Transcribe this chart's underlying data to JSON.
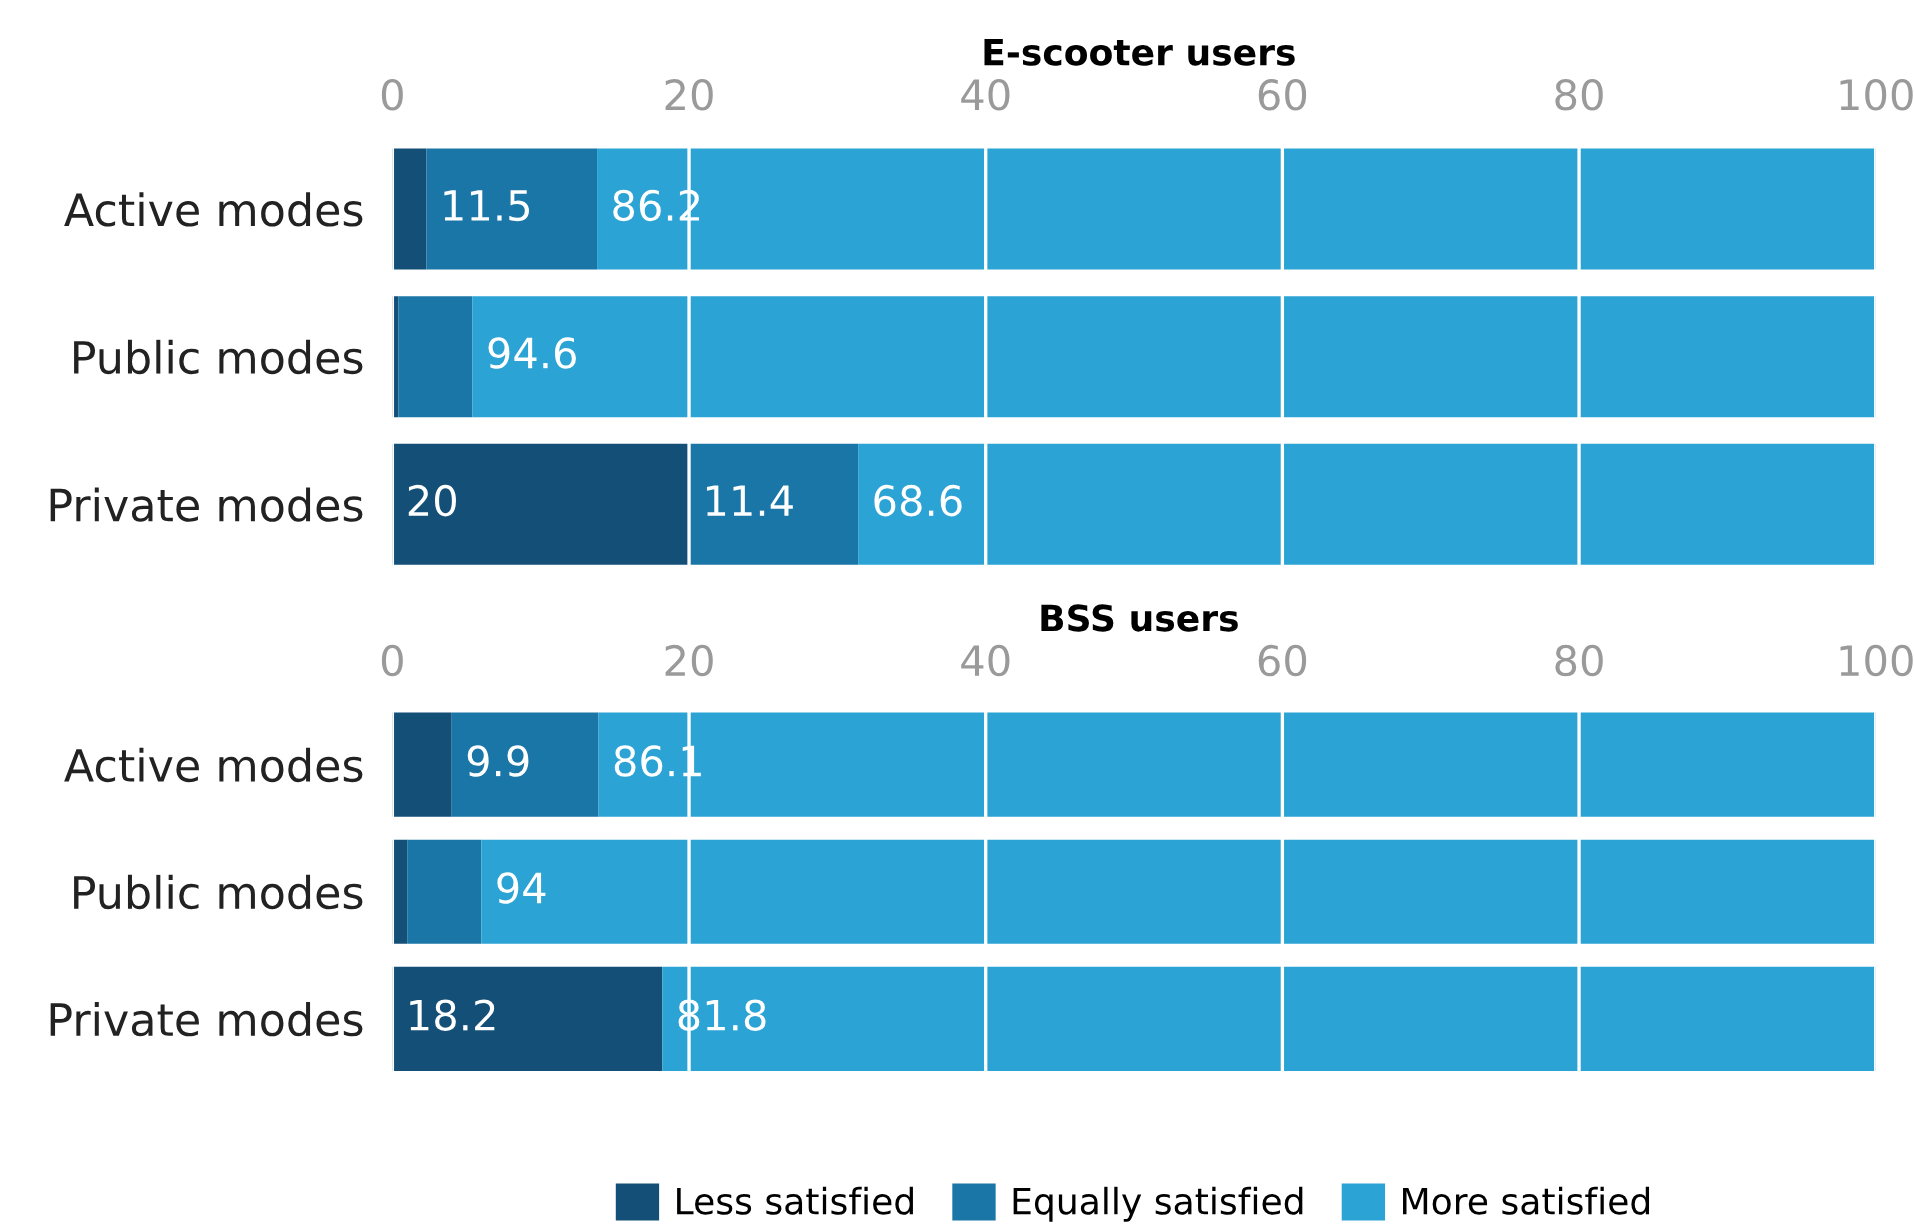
{
  "chart_data": [
    {
      "type": "bar",
      "orientation": "horizontal",
      "stacked": true,
      "title": "E-scooter users",
      "categories": [
        "Active modes",
        "Public modes",
        "Private modes"
      ],
      "xlim": [
        0,
        100
      ],
      "xticks": [
        0,
        20,
        40,
        60,
        80,
        100
      ],
      "grid": "x",
      "series": [
        {
          "color": "#134f77",
          "values": [
            2.3,
            0.4,
            20
          ],
          "value_labels": [
            null,
            null,
            "20"
          ]
        },
        {
          "color": "#1a76a6",
          "values": [
            11.5,
            5.0,
            11.4
          ],
          "value_labels": [
            "11.5",
            null,
            "11.4"
          ]
        },
        {
          "color": "#2ba3d4",
          "values": [
            86.2,
            94.6,
            68.6
          ],
          "value_labels": [
            "86.2",
            "94.6",
            "68.6"
          ]
        }
      ]
    },
    {
      "type": "bar",
      "orientation": "horizontal",
      "stacked": true,
      "title": "BSS users",
      "categories": [
        "Active modes",
        "Public modes",
        "Private modes"
      ],
      "xlim": [
        0,
        100
      ],
      "xticks": [
        0,
        20,
        40,
        60,
        80,
        100
      ],
      "grid": "x",
      "legend": "bottom",
      "series": [
        {
          "name": "Less satisfied",
          "color": "#134f77",
          "values": [
            4.0,
            1.0,
            18.2
          ],
          "value_labels": [
            null,
            null,
            "18.2"
          ]
        },
        {
          "name": "Equally satisfied",
          "color": "#1a76a6",
          "values": [
            9.9,
            5.0,
            0
          ],
          "value_labels": [
            "9.9",
            null,
            null
          ]
        },
        {
          "name": "More satisfied",
          "color": "#2ba3d4",
          "values": [
            86.1,
            94,
            81.8
          ],
          "value_labels": [
            "86.1",
            "94",
            "81.8"
          ]
        }
      ]
    }
  ]
}
